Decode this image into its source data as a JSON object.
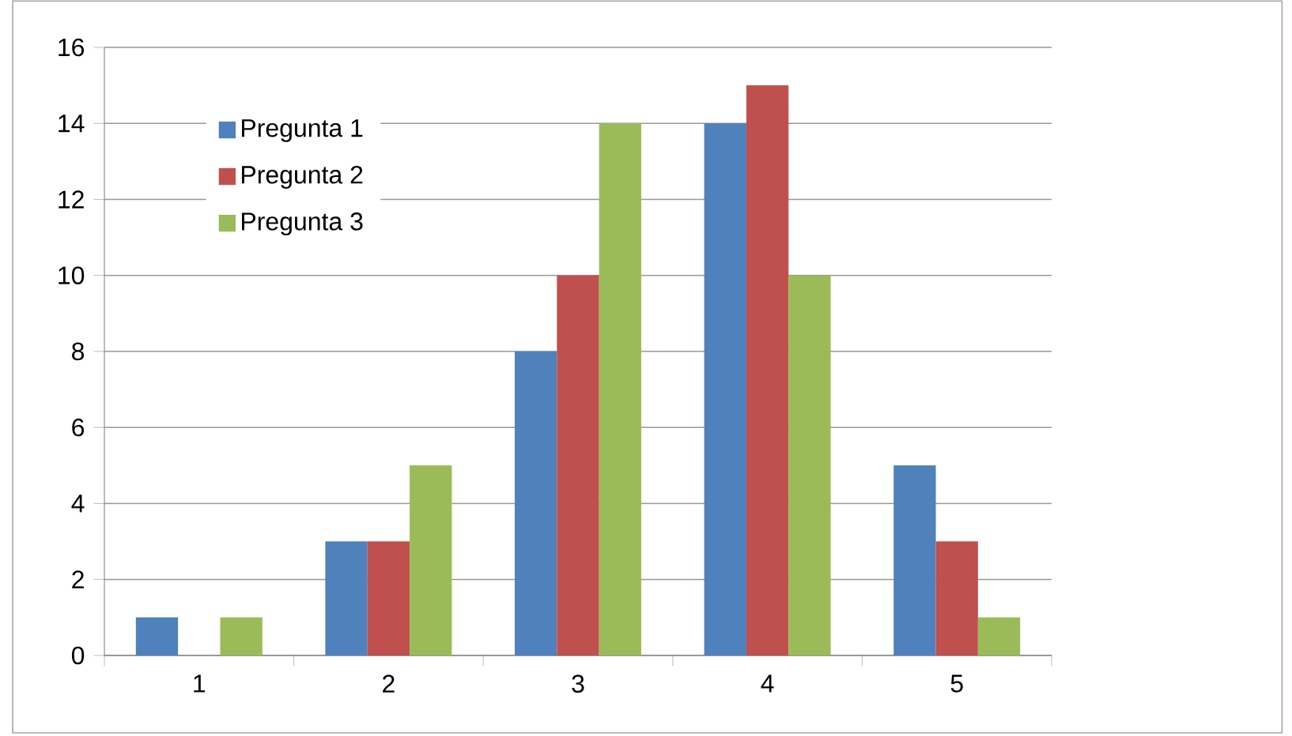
{
  "chart_data": {
    "type": "bar",
    "categories": [
      "1",
      "2",
      "3",
      "4",
      "5"
    ],
    "series": [
      {
        "name": "Pregunta 1",
        "color": "#4f81bd",
        "values": [
          1,
          3,
          8,
          14,
          5
        ]
      },
      {
        "name": "Pregunta 2",
        "color": "#c0504d",
        "values": [
          0,
          3,
          10,
          15,
          3
        ]
      },
      {
        "name": "Pregunta 3",
        "color": "#9bbb59",
        "values": [
          1,
          5,
          14,
          10,
          1
        ]
      }
    ],
    "ylim": [
      0,
      16
    ],
    "yticks": [
      0,
      2,
      4,
      6,
      8,
      10,
      12,
      14,
      16
    ],
    "grid": "y",
    "legend": "top left"
  }
}
